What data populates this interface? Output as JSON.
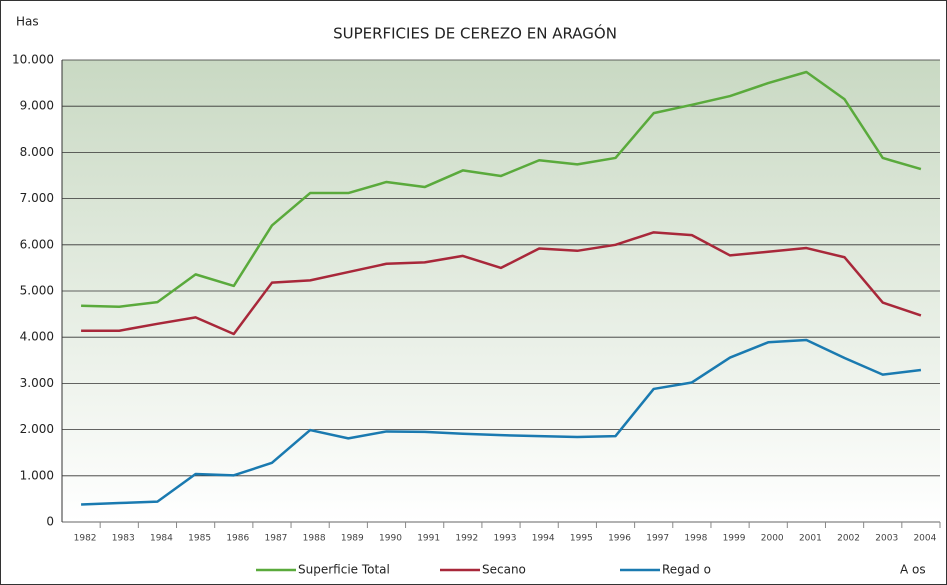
{
  "chart_data": {
    "type": "line",
    "title": "SUPERFICIES DE CEREZO EN ARAGÓN",
    "y_label": "Has",
    "x_label": "A os",
    "categories": [
      "1982",
      "1983",
      "1984",
      "1985",
      "1986",
      "1987",
      "1988",
      "1989",
      "1990",
      "1991",
      "1992",
      "1993",
      "1994",
      "1995",
      "1996",
      "1997",
      "1998",
      "1999",
      "2000",
      "2001",
      "2002",
      "2003",
      "2004"
    ],
    "series": [
      {
        "name": "Superficie Total",
        "color": "#5aaa3c",
        "values": [
          4680,
          4660,
          4760,
          5360,
          5110,
          6420,
          7120,
          7120,
          7360,
          7250,
          7610,
          7490,
          7830,
          7740,
          7880,
          8850,
          9030,
          9220,
          9500,
          9740,
          9150,
          7880,
          7640
        ]
      },
      {
        "name": "Secano",
        "color": "#a8283a",
        "values": [
          4140,
          4140,
          4290,
          4430,
          4070,
          5180,
          5230,
          5410,
          5590,
          5620,
          5760,
          5500,
          5920,
          5870,
          6000,
          6270,
          6210,
          5770,
          5850,
          5930,
          5730,
          4750,
          4470
        ]
      },
      {
        "name": "Regad o",
        "color": "#1a7ab0",
        "values": [
          380,
          410,
          440,
          1040,
          1010,
          1280,
          1990,
          1810,
          1960,
          1950,
          1910,
          1880,
          1860,
          1840,
          1860,
          2880,
          3020,
          3560,
          3890,
          3940,
          3550,
          3190,
          3290
        ]
      }
    ],
    "ylim": [
      0,
      10000
    ],
    "yticks": [
      0,
      {
        "value": 1000,
        "label": "1.000"
      },
      {
        "value": 2000,
        "label": "2.000"
      },
      {
        "value": 3000,
        "label": "3.000"
      },
      {
        "value": 4000,
        "label": "4.000"
      },
      {
        "value": 5000,
        "label": "5.000"
      },
      {
        "value": 6000,
        "label": "6.000"
      },
      {
        "value": 7000,
        "label": "7.000"
      },
      {
        "value": 8000,
        "label": "8.000"
      },
      {
        "value": 9000,
        "label": "9.000"
      },
      {
        "value": 10000,
        "label": "10.000"
      }
    ],
    "grid": true,
    "legend": "bottom"
  }
}
